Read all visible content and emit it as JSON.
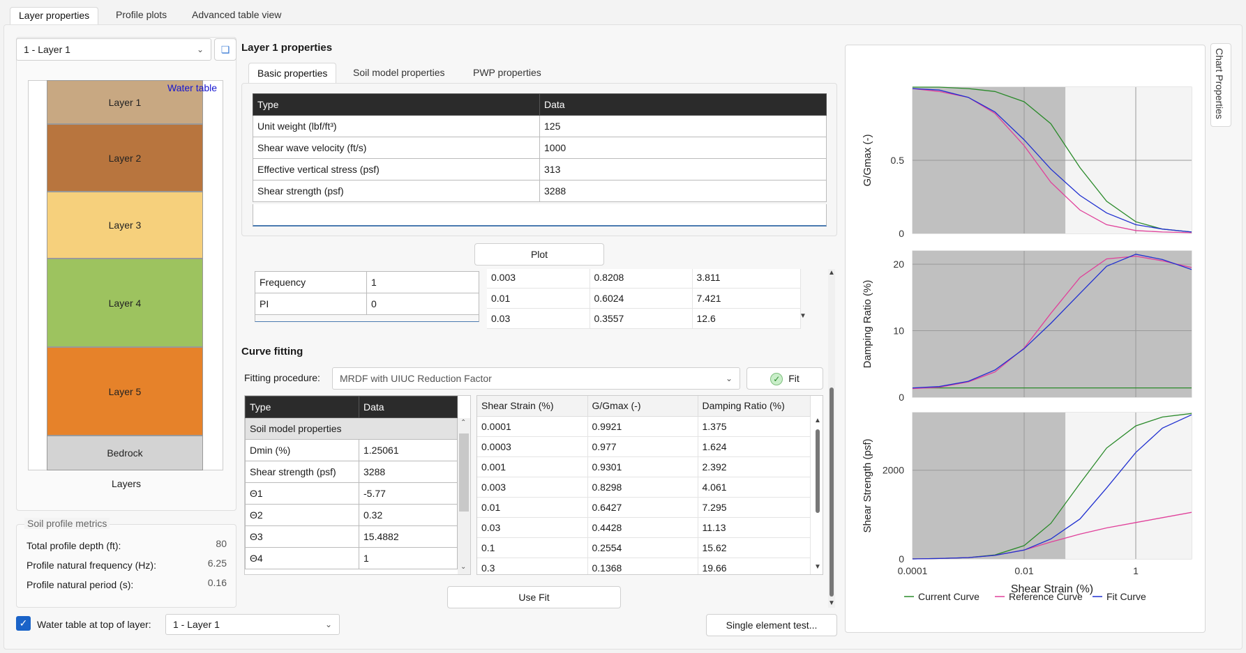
{
  "tabs": [
    "Layer properties",
    "Profile plots",
    "Advanced table view"
  ],
  "layer_select": "1 - Layer 1",
  "water_table_label": "Water table",
  "layers": [
    {
      "name": "Layer 1",
      "color": "#c8a882"
    },
    {
      "name": "Layer 2",
      "color": "#b8753e"
    },
    {
      "name": "Layer 3",
      "color": "#f6d07c"
    },
    {
      "name": "Layer 4",
      "color": "#9dc35f"
    },
    {
      "name": "Layer 5",
      "color": "#e6822a"
    },
    {
      "name": "Bedrock",
      "color": "#d3d3d3"
    }
  ],
  "layers_axis_label": "Layers",
  "metrics": {
    "title": "Soil profile metrics",
    "rows": [
      {
        "label": "Total profile depth (ft):",
        "value": "80"
      },
      {
        "label": "Profile natural frequency (Hz):",
        "value": "6.25"
      },
      {
        "label": "Profile natural period (s):",
        "value": "0.16"
      }
    ]
  },
  "water_table_checkbox": {
    "label": "Water table at top of layer:",
    "value": "1 - Layer 1"
  },
  "props_title": "Layer 1 properties",
  "sub_tabs": [
    "Basic properties",
    "Soil model properties",
    "PWP properties"
  ],
  "basic": {
    "headers": [
      "Type",
      "Data"
    ],
    "rows": [
      [
        "Unit weight (lbf/ft³)",
        "125"
      ],
      [
        "Shear wave velocity (ft/s)",
        "1000"
      ],
      [
        "Effective vertical stress (psf)",
        "313"
      ],
      [
        "Shear strength (psf)",
        "3288"
      ]
    ]
  },
  "plot_button": "Plot",
  "mid_left": [
    [
      "Frequency",
      "1"
    ],
    [
      "PI",
      "0"
    ]
  ],
  "mid_right": [
    [
      "0.003",
      "0.8208",
      "3.811"
    ],
    [
      "0.01",
      "0.6024",
      "7.421"
    ],
    [
      "0.03",
      "0.3557",
      "12.6"
    ]
  ],
  "curve_fitting": {
    "title": "Curve fitting",
    "procedure_label": "Fitting procedure:",
    "procedure_value": "MRDF with UIUC Reduction Factor",
    "fit_button": "Fit",
    "params_headers": [
      "Type",
      "Data"
    ],
    "params_section": "Soil model properties",
    "params": [
      [
        "Dmin (%)",
        "1.25061"
      ],
      [
        "Shear strength (psf)",
        "3288"
      ],
      [
        "Θ1",
        "-5.77"
      ],
      [
        "Θ2",
        "0.32"
      ],
      [
        "Θ3",
        "15.4882"
      ],
      [
        "Θ4",
        "1"
      ]
    ],
    "result_headers": [
      "Shear Strain (%)",
      "G/Gmax (-)",
      "Damping Ratio (%)"
    ],
    "results": [
      [
        "0.0001",
        "0.9921",
        "1.375"
      ],
      [
        "0.0003",
        "0.977",
        "1.624"
      ],
      [
        "0.001",
        "0.9301",
        "2.392"
      ],
      [
        "0.003",
        "0.8298",
        "4.061"
      ],
      [
        "0.01",
        "0.6427",
        "7.295"
      ],
      [
        "0.03",
        "0.4428",
        "11.13"
      ],
      [
        "0.1",
        "0.2554",
        "15.62"
      ],
      [
        "0.3",
        "0.1368",
        "19.66"
      ]
    ],
    "use_fit": "Use Fit",
    "single_element": "Single element test..."
  },
  "chart_properties_tab": "Chart Properties",
  "chart_data": [
    {
      "type": "line",
      "ylabel": "G/Gmax (-)",
      "xscale": "log",
      "xlim": [
        0.0001,
        10
      ],
      "ylim": [
        0,
        1
      ],
      "yticks": [
        "0.5",
        "0"
      ],
      "series": [
        {
          "name": "Current Curve",
          "color": "#2a8a2a",
          "x": [
            0.0001,
            0.0003,
            0.001,
            0.003,
            0.01,
            0.03,
            0.1,
            0.3,
            1,
            3,
            10
          ],
          "values": [
            1,
            1,
            0.99,
            0.97,
            0.9,
            0.75,
            0.45,
            0.22,
            0.08,
            0.03,
            0.01
          ]
        },
        {
          "name": "Reference Curve",
          "color": "#e0409a",
          "x": [
            0.0001,
            0.0003,
            0.001,
            0.003,
            0.01,
            0.03,
            0.1,
            0.3,
            1,
            3,
            10
          ],
          "values": [
            0.99,
            0.97,
            0.93,
            0.82,
            0.6,
            0.35,
            0.16,
            0.06,
            0.02,
            0.01,
            0.005
          ]
        },
        {
          "name": "Fit Curve",
          "color": "#2030d0",
          "x": [
            0.0001,
            0.0003,
            0.001,
            0.003,
            0.01,
            0.03,
            0.1,
            0.3,
            1,
            3,
            10
          ],
          "values": [
            0.99,
            0.98,
            0.93,
            0.83,
            0.64,
            0.44,
            0.26,
            0.14,
            0.06,
            0.03,
            0.01
          ]
        }
      ]
    },
    {
      "type": "line",
      "ylabel": "Damping Ratio (%)",
      "xscale": "log",
      "xlim": [
        0.0001,
        10
      ],
      "ylim": [
        0,
        22
      ],
      "yticks": [
        "20",
        "10",
        "0"
      ],
      "series": [
        {
          "name": "Current Curve",
          "color": "#2a8a2a",
          "x": [
            0.0001,
            10
          ],
          "values": [
            1.4,
            1.4
          ]
        },
        {
          "name": "Reference Curve",
          "color": "#e0409a",
          "x": [
            0.0001,
            0.0003,
            0.001,
            0.003,
            0.01,
            0.03,
            0.1,
            0.3,
            1,
            3,
            10
          ],
          "values": [
            1.3,
            1.5,
            2.3,
            3.8,
            7.4,
            12.6,
            18,
            20.8,
            21.2,
            20.5,
            19.5
          ]
        },
        {
          "name": "Fit Curve",
          "color": "#2030d0",
          "x": [
            0.0001,
            0.0003,
            0.001,
            0.003,
            0.01,
            0.03,
            0.1,
            0.3,
            1,
            3,
            10
          ],
          "values": [
            1.4,
            1.6,
            2.4,
            4.1,
            7.3,
            11.1,
            15.6,
            19.7,
            21.5,
            20.7,
            19.2
          ]
        }
      ]
    },
    {
      "type": "line",
      "ylabel": "Shear Strength (psf)",
      "xlabel": "Shear Strain (%)",
      "xscale": "log",
      "xlim": [
        0.0001,
        10
      ],
      "ylim": [
        0,
        3300
      ],
      "yticks": [
        "2000",
        "0"
      ],
      "xticks": [
        "0.0001",
        "0.01",
        "1"
      ],
      "series": [
        {
          "name": "Current Curve",
          "color": "#2a8a2a",
          "x": [
            0.0001,
            0.0003,
            0.001,
            0.003,
            0.01,
            0.03,
            0.1,
            0.3,
            1,
            3,
            10
          ],
          "values": [
            0,
            10,
            30,
            90,
            300,
            800,
            1700,
            2500,
            3000,
            3200,
            3280
          ]
        },
        {
          "name": "Reference Curve",
          "color": "#e0409a",
          "x": [
            0.0001,
            0.0003,
            0.001,
            0.003,
            0.01,
            0.03,
            0.1,
            0.3,
            1,
            3,
            10
          ],
          "values": [
            0,
            10,
            30,
            80,
            200,
            380,
            560,
            700,
            820,
            930,
            1050
          ]
        },
        {
          "name": "Fit Curve",
          "color": "#2030d0",
          "x": [
            0.0001,
            0.0003,
            0.001,
            0.003,
            0.01,
            0.03,
            0.1,
            0.3,
            1,
            3,
            10
          ],
          "values": [
            0,
            10,
            30,
            80,
            200,
            450,
            900,
            1600,
            2400,
            2950,
            3250
          ]
        }
      ]
    }
  ],
  "legend": [
    "Current Curve",
    "Reference Curve",
    "Fit Curve"
  ]
}
